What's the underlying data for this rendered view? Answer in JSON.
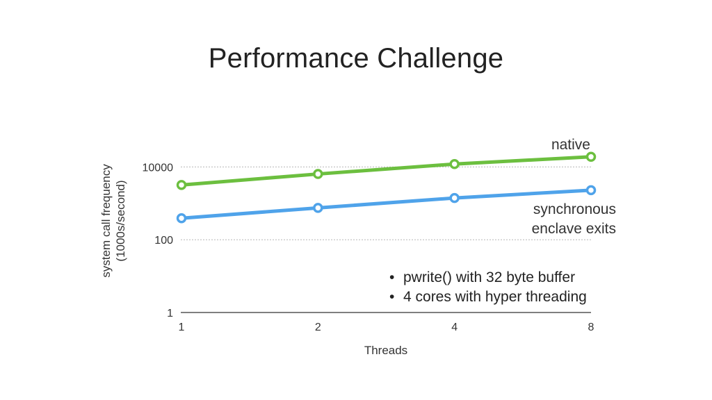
{
  "slide": {
    "title": "Performance Challenge"
  },
  "chart_data": {
    "type": "line",
    "title": "",
    "xlabel": "Threads",
    "ylabel_lines": [
      "system call frequency",
      "(1000s/second)"
    ],
    "x_scale": "log2",
    "y_scale": "log10",
    "categories": [
      "1",
      "2",
      "4",
      "8"
    ],
    "x": [
      1,
      2,
      4,
      8
    ],
    "y_ticks": [
      {
        "value": 1,
        "label": "1"
      },
      {
        "value": 100,
        "label": "100"
      },
      {
        "value": 10000,
        "label": "10000"
      }
    ],
    "ylim": [
      1,
      100000
    ],
    "grid": true,
    "series": [
      {
        "name": "native",
        "color": "#6cbf3f",
        "values": [
          3200,
          6400,
          12000,
          19000
        ]
      },
      {
        "name": "synchronous enclave exits",
        "color": "#4fa3ea",
        "values": [
          390,
          750,
          1400,
          2300
        ]
      }
    ],
    "series_label_lines": [
      [
        "native"
      ],
      [
        "synchronous",
        "enclave exits"
      ]
    ],
    "annotations": [
      "pwrite() with 32 byte buffer",
      "4 cores with hyper threading"
    ],
    "bullet_char": "•",
    "colors": {
      "axis": "#555555",
      "grid": "#b5b5b5",
      "marker_fill": "#ffffff"
    }
  }
}
